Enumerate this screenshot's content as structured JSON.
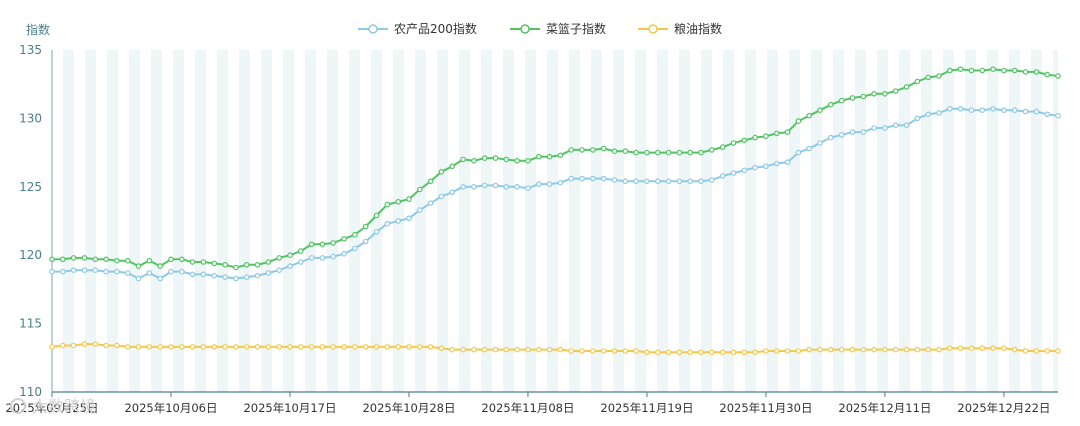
{
  "chart_data": {
    "type": "line",
    "ylabel": "指数",
    "ylim": [
      110,
      135
    ],
    "yticks": [
      110,
      115,
      120,
      125,
      130,
      135
    ],
    "x_tick_labels": [
      "2025年09月25日",
      "2025年10月06日",
      "2025年10月17日",
      "2025年10月28日",
      "2025年11月08日",
      "2025年11月19日",
      "2025年11月30日",
      "2025年12月11日",
      "2025年12月22日"
    ],
    "x_start": "2025-09-25",
    "legend_position": "top-center",
    "grid": "alternating-vertical-bands",
    "series": [
      {
        "name": "农产品200指数",
        "color": "#8ecae6",
        "values": [
          118.8,
          118.8,
          118.9,
          118.9,
          118.9,
          118.8,
          118.8,
          118.7,
          118.3,
          118.7,
          118.3,
          118.8,
          118.8,
          118.6,
          118.6,
          118.5,
          118.4,
          118.3,
          118.4,
          118.5,
          118.7,
          118.9,
          119.2,
          119.5,
          119.8,
          119.8,
          119.9,
          120.1,
          120.5,
          121.0,
          121.7,
          122.3,
          122.5,
          122.7,
          123.3,
          123.8,
          124.3,
          124.6,
          125.0,
          125.0,
          125.1,
          125.1,
          125.0,
          125.0,
          124.9,
          125.2,
          125.2,
          125.3,
          125.6,
          125.6,
          125.6,
          125.6,
          125.5,
          125.4,
          125.4,
          125.4,
          125.4,
          125.4,
          125.4,
          125.4,
          125.4,
          125.5,
          125.8,
          126.0,
          126.2,
          126.4,
          126.5,
          126.7,
          126.8,
          127.5,
          127.8,
          128.2,
          128.6,
          128.8,
          129.0,
          129.0,
          129.3,
          129.3,
          129.5,
          129.5,
          130.0,
          130.3,
          130.4,
          130.7,
          130.7,
          130.6,
          130.6,
          130.7,
          130.6,
          130.6,
          130.5,
          130.5,
          130.3,
          130.2
        ]
      },
      {
        "name": "菜篮子指数",
        "color": "#52c463",
        "values": [
          119.7,
          119.7,
          119.8,
          119.8,
          119.7,
          119.7,
          119.6,
          119.6,
          119.2,
          119.6,
          119.2,
          119.7,
          119.7,
          119.5,
          119.5,
          119.4,
          119.3,
          119.1,
          119.3,
          119.3,
          119.5,
          119.8,
          120.0,
          120.3,
          120.8,
          120.8,
          120.9,
          121.2,
          121.5,
          122.1,
          122.9,
          123.7,
          123.9,
          124.1,
          124.8,
          125.4,
          126.1,
          126.5,
          127.0,
          126.9,
          127.1,
          127.1,
          127.0,
          126.9,
          126.9,
          127.2,
          127.2,
          127.3,
          127.7,
          127.7,
          127.7,
          127.8,
          127.6,
          127.6,
          127.5,
          127.5,
          127.5,
          127.5,
          127.5,
          127.5,
          127.5,
          127.7,
          127.9,
          128.2,
          128.4,
          128.6,
          128.7,
          128.9,
          129.0,
          129.8,
          130.2,
          130.6,
          131.0,
          131.3,
          131.5,
          131.6,
          131.8,
          131.8,
          132.0,
          132.3,
          132.7,
          133.0,
          133.1,
          133.5,
          133.6,
          133.5,
          133.5,
          133.6,
          133.5,
          133.5,
          133.4,
          133.4,
          133.2,
          133.1
        ]
      },
      {
        "name": "粮油指数",
        "color": "#f5c84c",
        "values": [
          113.3,
          113.4,
          113.4,
          113.5,
          113.5,
          113.4,
          113.4,
          113.3,
          113.3,
          113.3,
          113.3,
          113.3,
          113.3,
          113.3,
          113.3,
          113.3,
          113.3,
          113.3,
          113.3,
          113.3,
          113.3,
          113.3,
          113.3,
          113.3,
          113.3,
          113.3,
          113.3,
          113.3,
          113.3,
          113.3,
          113.3,
          113.3,
          113.3,
          113.3,
          113.3,
          113.3,
          113.2,
          113.1,
          113.1,
          113.1,
          113.1,
          113.1,
          113.1,
          113.1,
          113.1,
          113.1,
          113.1,
          113.1,
          113.0,
          113.0,
          113.0,
          113.0,
          113.0,
          113.0,
          113.0,
          112.9,
          112.9,
          112.9,
          112.9,
          112.9,
          112.9,
          112.9,
          112.9,
          112.9,
          112.9,
          112.9,
          113.0,
          113.0,
          113.0,
          113.0,
          113.1,
          113.1,
          113.1,
          113.1,
          113.1,
          113.1,
          113.1,
          113.1,
          113.1,
          113.1,
          113.1,
          113.1,
          113.1,
          113.2,
          113.2,
          113.2,
          113.2,
          113.2,
          113.2,
          113.1,
          113.0,
          113.0,
          113.0,
          113.0
        ]
      }
    ]
  },
  "watermark": "大数跨境"
}
